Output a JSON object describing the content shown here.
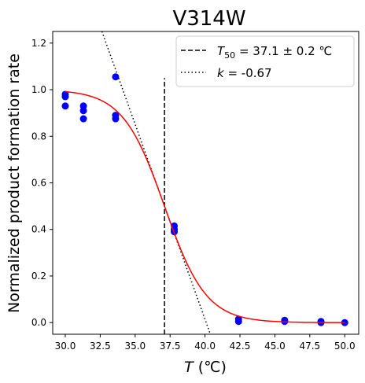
{
  "chart_data": {
    "type": "scatter",
    "title": "V314W",
    "xlabel_italic": "T",
    "xlabel_unit": " (℃)",
    "ylabel": "Normalized product formation rate",
    "xlim": [
      29.1,
      51.0
    ],
    "ylim": [
      -0.05,
      1.25
    ],
    "xticks": [
      "30.0",
      "32.5",
      "35.0",
      "37.5",
      "40.0",
      "42.5",
      "45.0",
      "47.5",
      "50.0"
    ],
    "yticks": [
      "0.0",
      "0.2",
      "0.4",
      "0.6",
      "0.8",
      "1.0",
      "1.2"
    ],
    "grid": false,
    "legend_position": "top-right",
    "points": [
      {
        "x": 30.0,
        "y": 0.97
      },
      {
        "x": 30.0,
        "y": 0.98
      },
      {
        "x": 30.0,
        "y": 0.93
      },
      {
        "x": 31.3,
        "y": 0.93
      },
      {
        "x": 31.3,
        "y": 0.91
      },
      {
        "x": 31.3,
        "y": 0.875
      },
      {
        "x": 33.6,
        "y": 1.055
      },
      {
        "x": 33.6,
        "y": 0.89
      },
      {
        "x": 33.6,
        "y": 0.875
      },
      {
        "x": 37.8,
        "y": 0.415
      },
      {
        "x": 37.8,
        "y": 0.4
      },
      {
        "x": 37.8,
        "y": 0.39
      },
      {
        "x": 42.4,
        "y": 0.015
      },
      {
        "x": 42.4,
        "y": 0.005
      },
      {
        "x": 45.7,
        "y": 0.01
      },
      {
        "x": 45.7,
        "y": 0.005
      },
      {
        "x": 48.3,
        "y": 0.005
      },
      {
        "x": 48.3,
        "y": 0.0
      },
      {
        "x": 50.0,
        "y": 0.0
      }
    ],
    "fit": {
      "type": "sigmoid",
      "T50": 37.1,
      "k": -0.67,
      "top": 1.0,
      "color": "#ff0000"
    },
    "t50_line": {
      "x": 37.1,
      "y_range": [
        -0.05,
        1.05
      ],
      "style": "dashed"
    },
    "slope_line": {
      "k": -0.67,
      "through_x": 37.1,
      "through_y": 0.5,
      "style": "dotted"
    },
    "legend": [
      {
        "style": "dashed",
        "label_prefix": "T",
        "label_sub": "50",
        "label_rest": " = 37.1 ± 0.2 ℃"
      },
      {
        "style": "dotted",
        "label_prefix": "k",
        "label_rest": " = -0.67"
      }
    ],
    "point_color": "#0000ff"
  }
}
